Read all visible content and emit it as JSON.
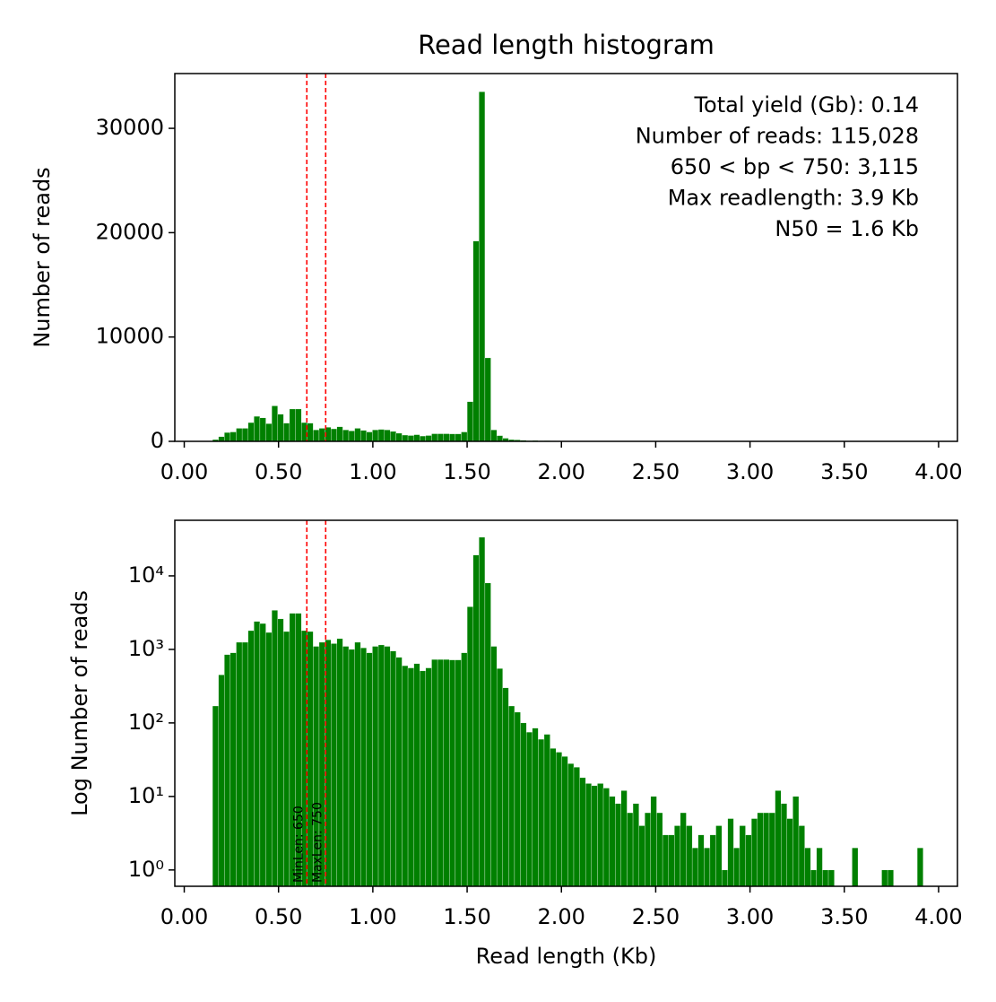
{
  "chart_data": [
    {
      "type": "histogram",
      "title": "Read length histogram",
      "ylabel": "Number of reads",
      "color": "#008000",
      "annotations": [
        "Total yield (Gb): 0.14",
        "Number of reads: 115,028",
        "650 < bp < 750: 3,115",
        "Max readlength: 3.9 Kb",
        "N50 = 1.6 Kb"
      ],
      "vlines": [
        0.65,
        0.75
      ],
      "vline_color": "#ff0000",
      "bins": [
        0.15,
        0.1814,
        0.2128,
        0.2442,
        0.2756,
        0.307,
        0.3384,
        0.3698,
        0.4012,
        0.4326,
        0.464,
        0.4954,
        0.5268,
        0.5582,
        0.5896,
        0.621,
        0.6524,
        0.6838,
        0.7152,
        0.7466,
        0.778,
        0.8094,
        0.8408,
        0.8722,
        0.9036,
        0.935,
        0.9664,
        0.9978,
        1.0292,
        1.0606,
        1.092,
        1.1234,
        1.1548,
        1.1862,
        1.2176,
        1.249,
        1.2804,
        1.3118,
        1.3432,
        1.3746,
        1.406,
        1.4374,
        1.4688,
        1.5002,
        1.5316,
        1.563,
        1.5944,
        1.6258,
        1.6572,
        1.6886,
        1.72,
        1.7514,
        1.7828,
        1.8142,
        1.8456,
        1.877,
        1.9084,
        1.9398,
        1.9712,
        2.0026,
        2.034,
        2.0654,
        2.0968,
        2.1282,
        2.1596,
        2.191,
        2.2224,
        2.2538,
        2.2852,
        2.3166,
        2.348,
        2.3794,
        2.4108,
        2.4422,
        2.4736,
        2.505,
        2.5364,
        2.5678,
        2.5992,
        2.6306,
        2.662,
        2.6934,
        2.7248,
        2.7562,
        2.7876,
        2.819,
        2.8504,
        2.8818,
        2.9132,
        2.9446,
        2.976,
        3.0074,
        3.0388,
        3.0702,
        3.1016,
        3.133,
        3.1644,
        3.1958,
        3.2272,
        3.2586,
        3.29,
        3.3214,
        3.3528,
        3.3842,
        3.4156,
        3.447,
        3.4784,
        3.5098,
        3.5412,
        3.5726,
        3.604,
        3.6354,
        3.6668,
        3.6982,
        3.7296,
        3.761,
        3.7924,
        3.8238,
        3.8552,
        3.8866,
        3.918
      ],
      "values": [
        170,
        450,
        850,
        900,
        1250,
        1250,
        1800,
        2400,
        2250,
        1700,
        3400,
        2600,
        1750,
        3100,
        3100,
        1800,
        1750,
        1100,
        1250,
        1350,
        1200,
        1400,
        1100,
        1000,
        1250,
        1050,
        900,
        1100,
        1150,
        1100,
        950,
        780,
        600,
        560,
        640,
        510,
        560,
        730,
        730,
        730,
        720,
        720,
        900,
        3800,
        19200,
        33500,
        8000,
        1100,
        550,
        300,
        170,
        140,
        100,
        75,
        85,
        60,
        70,
        45,
        40,
        35,
        28,
        25,
        18,
        15,
        14,
        15,
        13,
        10,
        8,
        12,
        6,
        8,
        4,
        6,
        10,
        6,
        3,
        3,
        4,
        6,
        4,
        2,
        3,
        2,
        3,
        4,
        1,
        5,
        2,
        4,
        3,
        5,
        6,
        6,
        6,
        12,
        8,
        5,
        10,
        4,
        2,
        1,
        2,
        1,
        1,
        0,
        0,
        0,
        2,
        0,
        0,
        0,
        0,
        1,
        1,
        0,
        0,
        0,
        0,
        2
      ],
      "xlim": [
        -0.05,
        4.1
      ],
      "ylim": [
        0,
        35250
      ],
      "xticks": [
        {
          "value": 0,
          "label": "0.00"
        },
        {
          "value": 0.5,
          "label": "0.50"
        },
        {
          "value": 1,
          "label": "1.00"
        },
        {
          "value": 1.5,
          "label": "1.50"
        },
        {
          "value": 2,
          "label": "2.00"
        },
        {
          "value": 2.5,
          "label": "2.50"
        },
        {
          "value": 3,
          "label": "3.00"
        },
        {
          "value": 3.5,
          "label": "3.50"
        },
        {
          "value": 4,
          "label": "4.00"
        }
      ],
      "yticks": [
        0,
        10000,
        20000,
        30000
      ],
      "log": false
    },
    {
      "type": "histogram",
      "ylabel": "Log Number of reads",
      "xlabel": "Read length (Kb)",
      "color": "#008000",
      "vlines": [
        0.65,
        0.75
      ],
      "vline_color": "#ff0000",
      "vline_labels": [
        "MinLen: 650",
        "MaxLen: 750"
      ],
      "bins": [
        0.15,
        0.1814,
        0.2128,
        0.2442,
        0.2756,
        0.307,
        0.3384,
        0.3698,
        0.4012,
        0.4326,
        0.464,
        0.4954,
        0.5268,
        0.5582,
        0.5896,
        0.621,
        0.6524,
        0.6838,
        0.7152,
        0.7466,
        0.778,
        0.8094,
        0.8408,
        0.8722,
        0.9036,
        0.935,
        0.9664,
        0.9978,
        1.0292,
        1.0606,
        1.092,
        1.1234,
        1.1548,
        1.1862,
        1.2176,
        1.249,
        1.2804,
        1.3118,
        1.3432,
        1.3746,
        1.406,
        1.4374,
        1.4688,
        1.5002,
        1.5316,
        1.563,
        1.5944,
        1.6258,
        1.6572,
        1.6886,
        1.72,
        1.7514,
        1.7828,
        1.8142,
        1.8456,
        1.877,
        1.9084,
        1.9398,
        1.9712,
        2.0026,
        2.034,
        2.0654,
        2.0968,
        2.1282,
        2.1596,
        2.191,
        2.2224,
        2.2538,
        2.2852,
        2.3166,
        2.348,
        2.3794,
        2.4108,
        2.4422,
        2.4736,
        2.505,
        2.5364,
        2.5678,
        2.5992,
        2.6306,
        2.662,
        2.6934,
        2.7248,
        2.7562,
        2.7876,
        2.819,
        2.8504,
        2.8818,
        2.9132,
        2.9446,
        2.976,
        3.0074,
        3.0388,
        3.0702,
        3.1016,
        3.133,
        3.1644,
        3.1958,
        3.2272,
        3.2586,
        3.29,
        3.3214,
        3.3528,
        3.3842,
        3.4156,
        3.447,
        3.4784,
        3.5098,
        3.5412,
        3.5726,
        3.604,
        3.6354,
        3.6668,
        3.6982,
        3.7296,
        3.761,
        3.7924,
        3.8238,
        3.8552,
        3.8866,
        3.918
      ],
      "values": [
        170,
        450,
        850,
        900,
        1250,
        1250,
        1800,
        2400,
        2250,
        1700,
        3400,
        2600,
        1750,
        3100,
        3100,
        1800,
        1750,
        1100,
        1250,
        1350,
        1200,
        1400,
        1100,
        1000,
        1250,
        1050,
        900,
        1100,
        1150,
        1100,
        950,
        780,
        600,
        560,
        640,
        510,
        560,
        730,
        730,
        730,
        720,
        720,
        900,
        3800,
        19200,
        33500,
        8000,
        1100,
        550,
        300,
        170,
        140,
        100,
        75,
        85,
        60,
        70,
        45,
        40,
        35,
        28,
        25,
        18,
        15,
        14,
        15,
        13,
        10,
        8,
        12,
        6,
        8,
        4,
        6,
        10,
        6,
        3,
        3,
        4,
        6,
        4,
        2,
        3,
        2,
        3,
        4,
        1,
        5,
        2,
        4,
        3,
        5,
        6,
        6,
        6,
        12,
        8,
        5,
        10,
        4,
        2,
        1,
        2,
        1,
        1,
        0,
        0,
        0,
        2,
        0,
        0,
        0,
        0,
        1,
        1,
        0,
        0,
        0,
        0,
        2
      ],
      "xlim": [
        -0.05,
        4.1
      ],
      "ylim": [
        0.6,
        57000
      ],
      "xticks": [
        {
          "value": 0,
          "label": "0.00"
        },
        {
          "value": 0.5,
          "label": "0.50"
        },
        {
          "value": 1,
          "label": "1.00"
        },
        {
          "value": 1.5,
          "label": "1.50"
        },
        {
          "value": 2,
          "label": "2.00"
        },
        {
          "value": 2.5,
          "label": "2.50"
        },
        {
          "value": 3,
          "label": "3.00"
        },
        {
          "value": 3.5,
          "label": "3.50"
        },
        {
          "value": 4,
          "label": "4.00"
        }
      ],
      "yticks": [
        {
          "value": 1,
          "label": "10⁰"
        },
        {
          "value": 10,
          "label": "10¹"
        },
        {
          "value": 100,
          "label": "10²"
        },
        {
          "value": 1000,
          "label": "10³"
        },
        {
          "value": 10000,
          "label": "10⁴"
        }
      ],
      "log": true
    }
  ]
}
